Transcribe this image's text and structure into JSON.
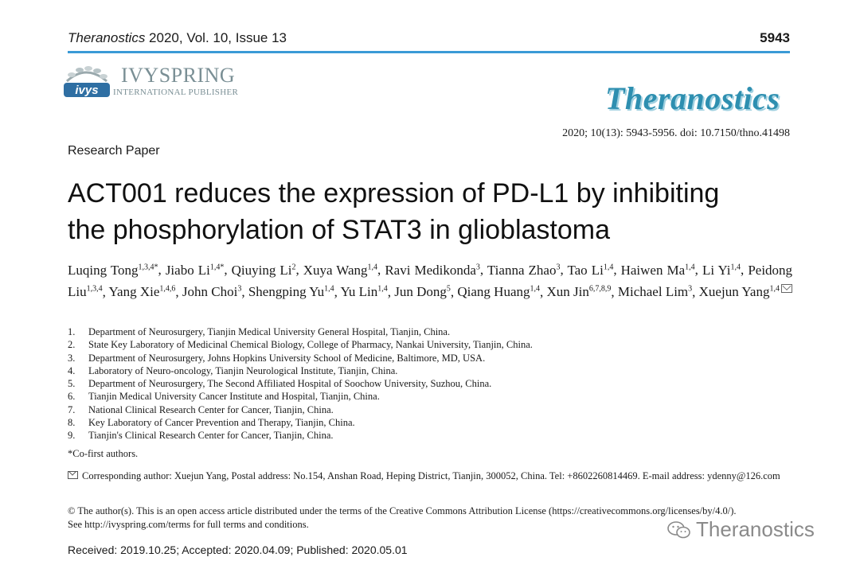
{
  "header": {
    "journal": "Theranostics",
    "volume_info": " 2020, Vol. 10, Issue 13",
    "page_number": "5943"
  },
  "publisher": {
    "logo_text": "ivys",
    "name": "IVYSPRING",
    "subtitle": "INTERNATIONAL PUBLISHER"
  },
  "journal_logo": "Theranostics",
  "citation": "2020; 10(13): 5943-5956. doi: 10.7150/thno.41498",
  "article_type": "Research Paper",
  "title_line1": "ACT001 reduces the expression of PD-L1 by inhibiting",
  "title_line2": "the phosphorylation of STAT3 in glioblastoma",
  "authors": [
    {
      "name": "Luqing Tong",
      "sup": "1,3,4*"
    },
    {
      "name": "Jiabo Li",
      "sup": "1,4*"
    },
    {
      "name": "Qiuying Li",
      "sup": "2"
    },
    {
      "name": "Xuya Wang",
      "sup": "1,4"
    },
    {
      "name": "Ravi Medikonda",
      "sup": "3"
    },
    {
      "name": "Tianna Zhao",
      "sup": "3"
    },
    {
      "name": "Tao Li",
      "sup": "1,4"
    },
    {
      "name": "Haiwen Ma",
      "sup": "1,4"
    },
    {
      "name": "Li Yi",
      "sup": "1,4"
    },
    {
      "name": "Peidong Liu",
      "sup": "1,3,4"
    },
    {
      "name": "Yang Xie",
      "sup": "1,4,6"
    },
    {
      "name": "John Choi",
      "sup": "3"
    },
    {
      "name": "Shengping Yu",
      "sup": "1,4"
    },
    {
      "name": "Yu Lin",
      "sup": "1,4"
    },
    {
      "name": "Jun Dong",
      "sup": "5"
    },
    {
      "name": "Qiang Huang",
      "sup": "1,4"
    },
    {
      "name": "Xun Jin",
      "sup": "6,7,8,9"
    },
    {
      "name": "Michael Lim",
      "sup": "3"
    },
    {
      "name": "Xuejun Yang",
      "sup": "1,4"
    }
  ],
  "affiliations": [
    {
      "num": "1.",
      "text": "Department of Neurosurgery, Tianjin Medical University General Hospital, Tianjin, China."
    },
    {
      "num": "2.",
      "text": "State Key Laboratory of Medicinal Chemical Biology, College of Pharmacy, Nankai University, Tianjin, China."
    },
    {
      "num": "3.",
      "text": "Department of Neurosurgery, Johns Hopkins University School of Medicine, Baltimore, MD, USA."
    },
    {
      "num": "4.",
      "text": "Laboratory of Neuro-oncology, Tianjin Neurological Institute, Tianjin, China."
    },
    {
      "num": "5.",
      "text": "Department of Neurosurgery, The Second Affiliated Hospital of Soochow University, Suzhou, China."
    },
    {
      "num": "6.",
      "text": "Tianjin Medical University Cancer Institute and Hospital, Tianjin, China."
    },
    {
      "num": "7.",
      "text": "National Clinical Research Center for Cancer, Tianjin, China."
    },
    {
      "num": "8.",
      "text": "Key Laboratory of Cancer Prevention and Therapy, Tianjin, China."
    },
    {
      "num": "9.",
      "text": "Tianjin's Clinical Research Center for Cancer, Tianjin, China."
    }
  ],
  "cofirst_note": "*Co-first authors.",
  "corresponding": "Corresponding author: Xuejun Yang, Postal address: No.154, Anshan Road, Heping District, Tianjin, 300052, China. Tel: +8602260814469. E-mail address: ydenny@126.com",
  "license_line1": "© The author(s). This is an open access article distributed under the terms of the Creative Commons Attribution License (https://creativecommons.org/licenses/by/4.0/).",
  "license_line2": "See http://ivyspring.com/terms for full terms and conditions.",
  "watermark": "Theranostics",
  "dates": "Received: 2019.10.25; Accepted: 2020.04.09; Published: 2020.05.01",
  "colors": {
    "rule": "#3a9ad6",
    "journal_logo": "#2e8fb0",
    "publisher": "#7a8f95"
  },
  "icons": {
    "corresponding": "envelope-icon",
    "watermark": "wechat-icon",
    "publisher_logo": "ivyspring-logo"
  }
}
